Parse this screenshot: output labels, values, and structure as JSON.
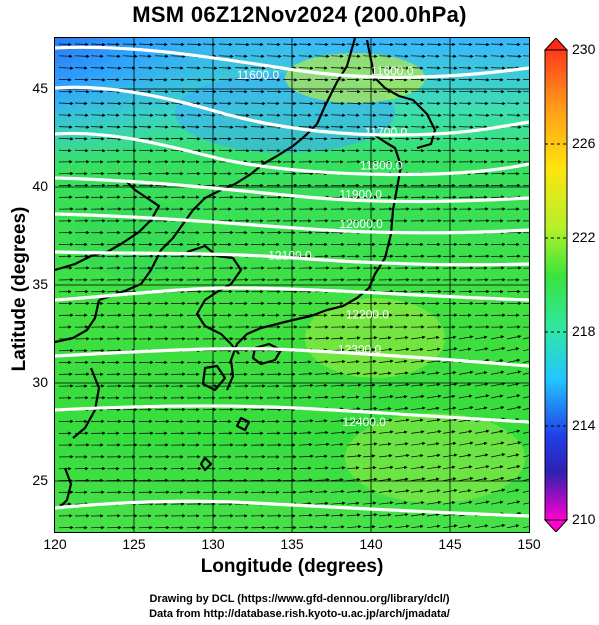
{
  "title": "MSM 06Z12Nov2024 (200.0hPa)",
  "xlabel": "Longitude (degrees)",
  "ylabel": "Latitude  (degrees)",
  "credit_line1": "Drawing by DCL (https://www.gfd-dennou.org/library/dcl/)",
  "credit_line2": "Data from http://database.rish.kyoto-u.ac.jp/arch/jmadata/",
  "colors": {
    "contour": "#ffffff",
    "coast": "#000000",
    "arrow": "#000000"
  },
  "chart_data": {
    "type": "heatmap",
    "xlim": [
      120,
      150
    ],
    "ylim": [
      22.4,
      47.6
    ],
    "x_ticks": [
      120,
      125,
      130,
      135,
      140,
      145,
      150
    ],
    "y_ticks": [
      25,
      30,
      35,
      40,
      45
    ],
    "grid": true,
    "colorbar": {
      "min": 210,
      "max": 230,
      "tick_labels": [
        "230",
        "226",
        "222",
        "218",
        "214",
        "210"
      ],
      "tick_values": [
        230,
        226,
        222,
        218,
        214,
        210
      ]
    },
    "contour_labels": [
      {
        "text": "11600.0",
        "lon": 131.5,
        "lat": 45.5
      },
      {
        "text": "11600.0",
        "lon": 140.0,
        "lat": 45.7
      },
      {
        "text": "11700.0",
        "lon": 139.6,
        "lat": 42.6
      },
      {
        "text": "11800.0",
        "lon": 139.3,
        "lat": 40.9
      },
      {
        "text": "11900.0",
        "lon": 138.0,
        "lat": 39.4
      },
      {
        "text": "12000.0",
        "lon": 138.0,
        "lat": 37.9
      },
      {
        "text": "12100.0",
        "lon": 133.5,
        "lat": 36.3
      },
      {
        "text": "12200.0",
        "lon": 138.4,
        "lat": 33.3
      },
      {
        "text": "12300.0",
        "lon": 137.9,
        "lat": 31.5
      },
      {
        "text": "12400.0",
        "lon": 138.2,
        "lat": 27.8
      }
    ]
  }
}
